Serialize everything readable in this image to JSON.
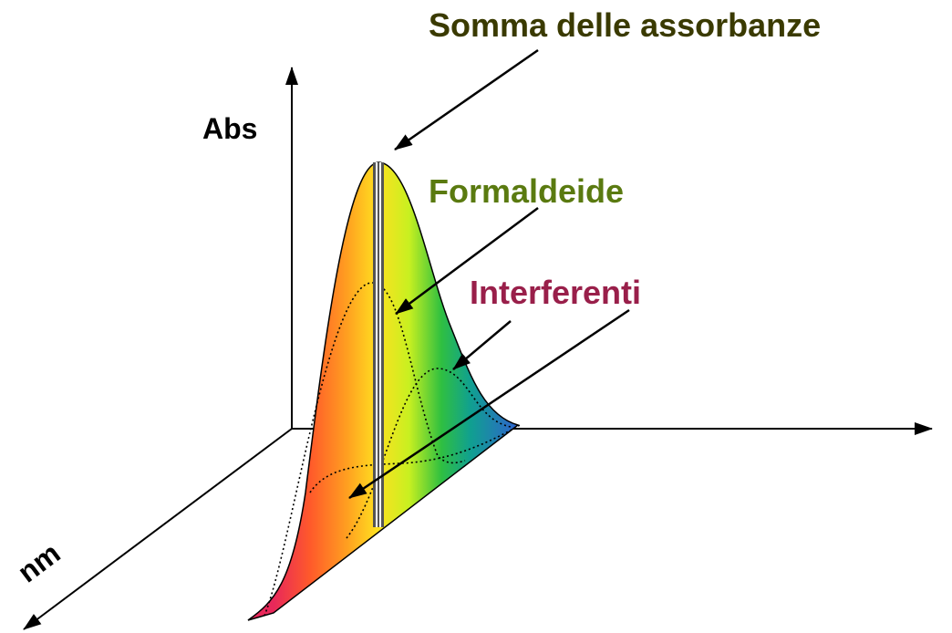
{
  "labels": {
    "sum": "Somma delle assorbanze",
    "y_axis": "Abs",
    "formaldehyde": "Formaldeide",
    "interferents": "Interferenti",
    "x_axis": "nm"
  }
}
